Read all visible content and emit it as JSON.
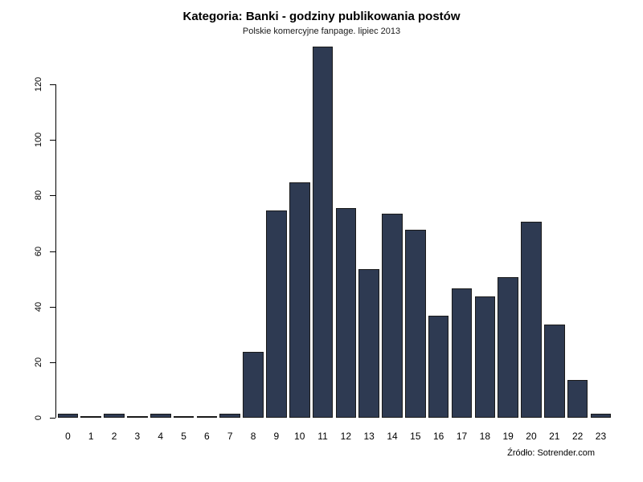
{
  "colors": {
    "bar_fill": "#2e3a52",
    "bar_border": "#1a1a1a",
    "axis": "#000000"
  },
  "chart_data": {
    "type": "bar",
    "title": "Kategoria: Banki - godziny publikowania postów",
    "subtitle": "Polskie komercyjne fanpage. lipiec 2013",
    "source": "Źródło: Sotrender.com",
    "xlabel": "",
    "ylabel": "",
    "categories": [
      "0",
      "1",
      "2",
      "3",
      "4",
      "5",
      "6",
      "7",
      "8",
      "9",
      "10",
      "11",
      "12",
      "13",
      "14",
      "15",
      "16",
      "17",
      "18",
      "19",
      "20",
      "21",
      "22",
      "23"
    ],
    "values": [
      1,
      0,
      1,
      0,
      1,
      0,
      0,
      1,
      23,
      74,
      84,
      133,
      75,
      53,
      73,
      67,
      36,
      46,
      43,
      50,
      70,
      33,
      13,
      1
    ],
    "ylim": [
      0,
      133
    ],
    "yticks": [
      0,
      20,
      40,
      60,
      80,
      100,
      120
    ],
    "grid": "off",
    "legend": "none"
  }
}
